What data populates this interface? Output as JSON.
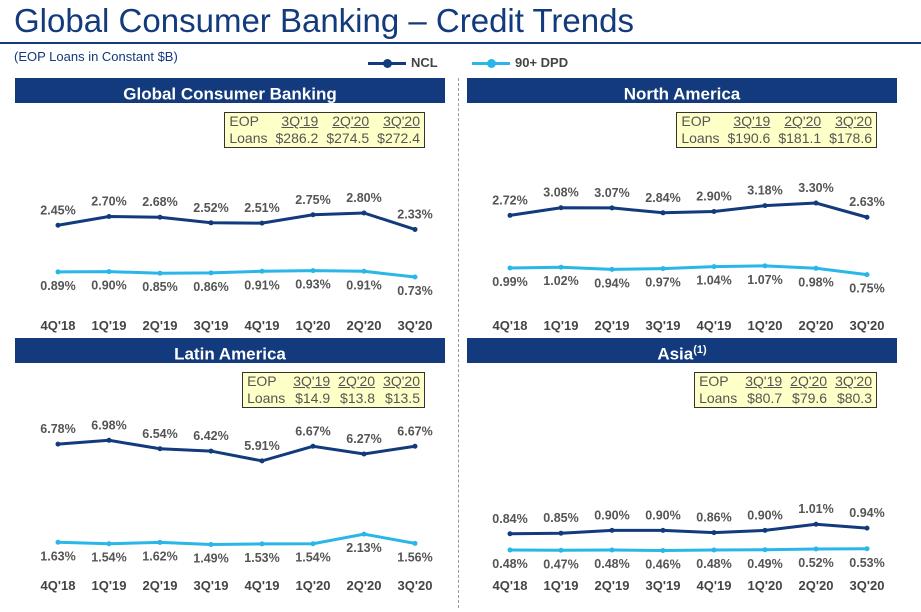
{
  "title": "Global Consumer Banking – Credit Trends",
  "subtitle": "(EOP Loans in Constant $B)",
  "legend": [
    {
      "label": "NCL",
      "color": "#123a7c"
    },
    {
      "label": "90+ DPD",
      "color": "#29b6e8"
    }
  ],
  "colors": {
    "ncl": "#123a7c",
    "dpd": "#29b6e8",
    "header": "#123a7c",
    "eop_bg": "#ffffc8"
  },
  "panels": [
    {
      "name": "Global Consumer Banking",
      "sup": "",
      "eop": {
        "row_label_1": "EOP",
        "row_label_2": "Loans",
        "periods": [
          "3Q'19",
          "2Q'20",
          "3Q'20"
        ],
        "values": [
          "$286.2",
          "$274.5",
          "$272.4"
        ]
      }
    },
    {
      "name": "North America",
      "sup": "",
      "eop": {
        "row_label_1": "EOP",
        "row_label_2": "Loans",
        "periods": [
          "3Q'19",
          "2Q'20",
          "3Q'20"
        ],
        "values": [
          "$190.6",
          "$181.1",
          "$178.6"
        ]
      }
    },
    {
      "name": "Latin America",
      "sup": "",
      "eop": {
        "row_label_1": "EOP",
        "row_label_2": "Loans",
        "periods": [
          "3Q'19",
          "2Q'20",
          "3Q'20"
        ],
        "values": [
          "$14.9",
          "$13.8",
          "$13.5"
        ]
      }
    },
    {
      "name": "Asia",
      "sup": "(1)",
      "eop": {
        "row_label_1": "EOP",
        "row_label_2": "Loans",
        "periods": [
          "3Q'19",
          "2Q'20",
          "3Q'20"
        ],
        "values": [
          "$80.7",
          "$79.6",
          "$80.3"
        ]
      }
    }
  ],
  "chart_data": [
    {
      "type": "line",
      "title": "Global Consumer Banking",
      "categories": [
        "4Q'18",
        "1Q'19",
        "2Q'19",
        "3Q'19",
        "4Q'19",
        "1Q'20",
        "2Q'20",
        "3Q'20"
      ],
      "series": [
        {
          "name": "NCL",
          "values": [
            2.45,
            2.7,
            2.68,
            2.52,
            2.51,
            2.75,
            2.8,
            2.33
          ],
          "labels": [
            "2.45%",
            "2.70%",
            "2.68%",
            "2.52%",
            "2.51%",
            "2.75%",
            "2.80%",
            "2.33%"
          ]
        },
        {
          "name": "90+ DPD",
          "values": [
            0.89,
            0.9,
            0.85,
            0.86,
            0.91,
            0.93,
            0.91,
            0.73
          ],
          "labels": [
            "0.89%",
            "0.90%",
            "0.85%",
            "0.86%",
            "0.91%",
            "0.93%",
            "0.91%",
            "0.73%"
          ]
        }
      ]
    },
    {
      "type": "line",
      "title": "North America",
      "categories": [
        "4Q'18",
        "1Q'19",
        "2Q'19",
        "3Q'19",
        "4Q'19",
        "1Q'20",
        "2Q'20",
        "3Q'20"
      ],
      "series": [
        {
          "name": "NCL",
          "values": [
            2.72,
            3.08,
            3.07,
            2.84,
            2.9,
            3.18,
            3.3,
            2.63
          ],
          "labels": [
            "2.72%",
            "3.08%",
            "3.07%",
            "2.84%",
            "2.90%",
            "3.18%",
            "3.30%",
            "2.63%"
          ]
        },
        {
          "name": "90+ DPD",
          "values": [
            0.99,
            1.02,
            0.94,
            0.97,
            1.04,
            1.07,
            0.98,
            0.75
          ],
          "labels": [
            "0.99%",
            "1.02%",
            "0.94%",
            "0.97%",
            "1.04%",
            "1.07%",
            "0.98%",
            "0.75%"
          ]
        }
      ]
    },
    {
      "type": "line",
      "title": "Latin America",
      "categories": [
        "4Q'18",
        "1Q'19",
        "2Q'19",
        "3Q'19",
        "4Q'19",
        "1Q'20",
        "2Q'20",
        "3Q'20"
      ],
      "series": [
        {
          "name": "NCL",
          "values": [
            6.78,
            6.98,
            6.54,
            6.42,
            5.91,
            6.67,
            6.27,
            6.67
          ],
          "labels": [
            "6.78%",
            "6.98%",
            "6.54%",
            "6.42%",
            "5.91%",
            "6.67%",
            "6.27%",
            "6.67%"
          ]
        },
        {
          "name": "90+ DPD",
          "values": [
            1.63,
            1.54,
            1.62,
            1.49,
            1.53,
            1.54,
            2.13,
            1.56
          ],
          "labels": [
            "1.63%",
            "1.54%",
            "1.62%",
            "1.49%",
            "1.53%",
            "1.54%",
            "2.13%",
            "1.56%"
          ]
        }
      ]
    },
    {
      "type": "line",
      "title": "Asia",
      "categories": [
        "4Q'18",
        "1Q'19",
        "2Q'19",
        "3Q'19",
        "4Q'19",
        "1Q'20",
        "2Q'20",
        "3Q'20"
      ],
      "series": [
        {
          "name": "NCL",
          "values": [
            0.84,
            0.85,
            0.9,
            0.9,
            0.86,
            0.9,
            1.01,
            0.94
          ],
          "labels": [
            "0.84%",
            "0.85%",
            "0.90%",
            "0.90%",
            "0.86%",
            "0.90%",
            "1.01%",
            "0.94%"
          ]
        },
        {
          "name": "90+ DPD",
          "values": [
            0.48,
            0.47,
            0.48,
            0.46,
            0.48,
            0.49,
            0.52,
            0.53
          ],
          "labels": [
            "0.48%",
            "0.47%",
            "0.48%",
            "0.46%",
            "0.48%",
            "0.49%",
            "0.52%",
            "0.53%"
          ]
        }
      ]
    }
  ]
}
